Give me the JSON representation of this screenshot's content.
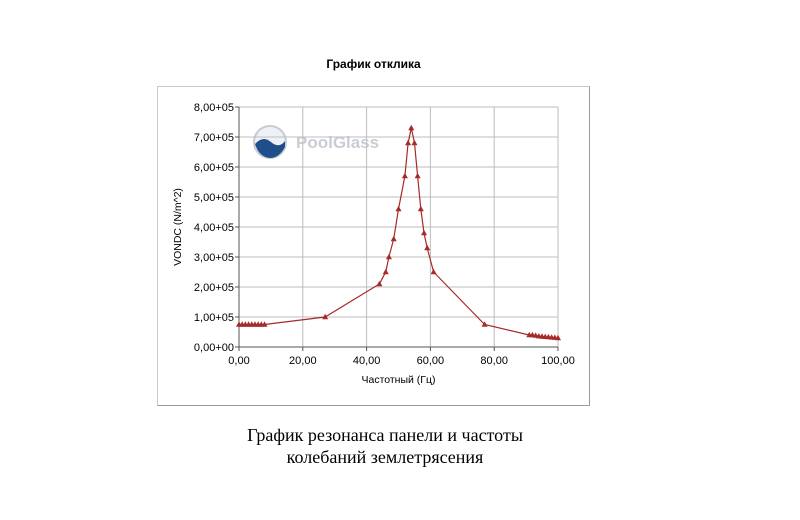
{
  "caption": {
    "line1": "График резонанса панели и частоты",
    "line2": "колебаний землетрясения"
  },
  "watermark": {
    "text": "PoolGlass"
  },
  "chart_data": {
    "type": "line",
    "title": "График отклика",
    "xlabel": "Частотный (Гц)",
    "ylabel": "VONDC (N/m^2)",
    "xlim": [
      0,
      100
    ],
    "ylim": [
      0,
      800000
    ],
    "xticks": [
      0,
      20,
      40,
      60,
      80,
      100
    ],
    "xtick_labels": [
      "0,00",
      "20,00",
      "40,00",
      "60,00",
      "80,00",
      "100,00"
    ],
    "yticks": [
      0,
      100000,
      200000,
      300000,
      400000,
      500000,
      600000,
      700000,
      800000
    ],
    "ytick_labels": [
      "0,00+00",
      "1,00+05",
      "2,00+05",
      "3,00+05",
      "4,00+05",
      "5,00+05",
      "6,00+05",
      "7,00+05",
      "8,00+05"
    ],
    "grid": true,
    "color": "#a52a2a",
    "marker": "triangle",
    "series": [
      {
        "x": [
          0,
          1,
          2,
          3,
          4,
          5,
          6,
          7,
          8,
          27,
          44,
          46,
          47,
          48.5,
          50,
          52,
          53,
          54,
          55,
          56,
          57,
          58,
          59,
          61,
          77,
          91,
          92,
          93,
          94,
          95,
          96,
          97,
          98,
          99,
          100
        ],
        "y": [
          75000,
          75000,
          75000,
          75000,
          75000,
          75000,
          75000,
          75000,
          75000,
          100000,
          210000,
          250000,
          300000,
          360000,
          460000,
          570000,
          680000,
          730000,
          680000,
          570000,
          460000,
          380000,
          330000,
          250000,
          75000,
          40000,
          40000,
          38000,
          36000,
          35000,
          34000,
          33000,
          32000,
          31000,
          30000
        ]
      }
    ]
  }
}
